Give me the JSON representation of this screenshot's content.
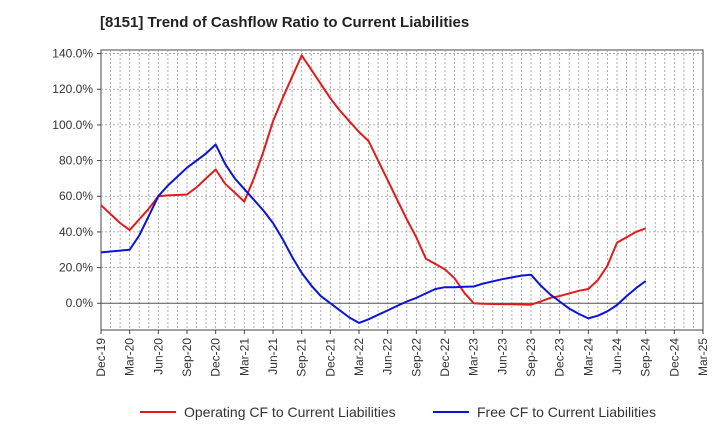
{
  "title": "[8151]  Trend of Cashflow Ratio to Current Liabilities",
  "chart_data": {
    "type": "line",
    "x_labels": [
      "Dec-19",
      "Mar-20",
      "Jun-20",
      "Sep-20",
      "Dec-20",
      "Mar-21",
      "Jun-21",
      "Sep-21",
      "Dec-21",
      "Mar-22",
      "Jun-22",
      "Sep-22",
      "Dec-22",
      "Mar-23",
      "Jun-23",
      "Sep-23",
      "Dec-23",
      "Mar-24",
      "Jun-24",
      "Sep-24",
      "Dec-24",
      "Mar-25"
    ],
    "y_ticks": [
      "140.0%",
      "120.0%",
      "100.0%",
      "80.0%",
      "60.0%",
      "40.0%",
      "20.0%",
      "0.0%"
    ],
    "ylim": [
      -15,
      142
    ],
    "grid": true,
    "legend_position": "bottom",
    "series": [
      {
        "name": "Operating CF to Current Liabilities",
        "color": "#e31a1c",
        "x": [
          "Dec-19",
          "Jan-20",
          "Feb-20",
          "Mar-20",
          "Apr-20",
          "May-20",
          "Jun-20",
          "Jul-20",
          "Aug-20",
          "Sep-20",
          "Oct-20",
          "Nov-20",
          "Dec-20",
          "Jan-21",
          "Feb-21",
          "Mar-21",
          "Apr-21",
          "May-21",
          "Jun-21",
          "Jul-21",
          "Aug-21",
          "Sep-21",
          "Oct-21",
          "Nov-21",
          "Dec-21",
          "Jan-22",
          "Feb-22",
          "Mar-22",
          "Apr-22",
          "May-22",
          "Jun-22",
          "Jul-22",
          "Aug-22",
          "Sep-22",
          "Oct-22",
          "Nov-22",
          "Dec-22",
          "Jan-23",
          "Feb-23",
          "Mar-23",
          "Apr-23",
          "May-23",
          "Jun-23",
          "Jul-23",
          "Aug-23",
          "Sep-23",
          "Oct-23",
          "Nov-23",
          "Dec-23",
          "Jan-24",
          "Feb-24",
          "Mar-24",
          "Apr-24",
          "May-24",
          "Jun-24",
          "Jul-24",
          "Aug-24",
          "Sep-24"
        ],
        "values": [
          55,
          50,
          45,
          41,
          47,
          53,
          60,
          60.5,
          60.7,
          61,
          65,
          70,
          75,
          67,
          62,
          57,
          70,
          85,
          102,
          115,
          127,
          139,
          131,
          123,
          115,
          108,
          102,
          96,
          91,
          80,
          69,
          58,
          47,
          37,
          25,
          22,
          19,
          14,
          6,
          0,
          -0.3,
          -0.4,
          -0.5,
          -0.6,
          -0.7,
          -0.8,
          1,
          3,
          4,
          5.5,
          7,
          8,
          13,
          21,
          34,
          37,
          40,
          42
        ]
      },
      {
        "name": "Free CF to Current Liabilities",
        "color": "#0b14d6",
        "x": [
          "Dec-19",
          "Jan-20",
          "Feb-20",
          "Mar-20",
          "Apr-20",
          "May-20",
          "Jun-20",
          "Jul-20",
          "Aug-20",
          "Sep-20",
          "Oct-20",
          "Nov-20",
          "Dec-20",
          "Jan-21",
          "Feb-21",
          "Mar-21",
          "Apr-21",
          "May-21",
          "Jun-21",
          "Jul-21",
          "Aug-21",
          "Sep-21",
          "Oct-21",
          "Nov-21",
          "Dec-21",
          "Jan-22",
          "Feb-22",
          "Mar-22",
          "Apr-22",
          "May-22",
          "Jun-22",
          "Jul-22",
          "Aug-22",
          "Sep-22",
          "Oct-22",
          "Nov-22",
          "Dec-22",
          "Jan-23",
          "Feb-23",
          "Mar-23",
          "Apr-23",
          "May-23",
          "Jun-23",
          "Jul-23",
          "Aug-23",
          "Sep-23",
          "Oct-23",
          "Nov-23",
          "Dec-23",
          "Jan-24",
          "Feb-24",
          "Mar-24",
          "Apr-24",
          "May-24",
          "Jun-24",
          "Jul-24",
          "Aug-24",
          "Sep-24"
        ],
        "values": [
          28.5,
          29,
          29.5,
          30,
          38,
          49,
          60,
          66,
          71,
          76,
          80,
          84,
          89,
          78,
          70,
          64,
          58,
          52,
          45,
          36,
          26,
          17,
          10,
          4,
          0,
          -4,
          -8,
          -11,
          -9,
          -6.5,
          -4,
          -1.5,
          1,
          3,
          5.5,
          8,
          9,
          9,
          9.2,
          9.4,
          11,
          12.3,
          13.5,
          14.5,
          15.5,
          16,
          10,
          5,
          1,
          -3,
          -6,
          -8.5,
          -7,
          -4.5,
          -1,
          4,
          8.5,
          12.5
        ]
      }
    ]
  }
}
